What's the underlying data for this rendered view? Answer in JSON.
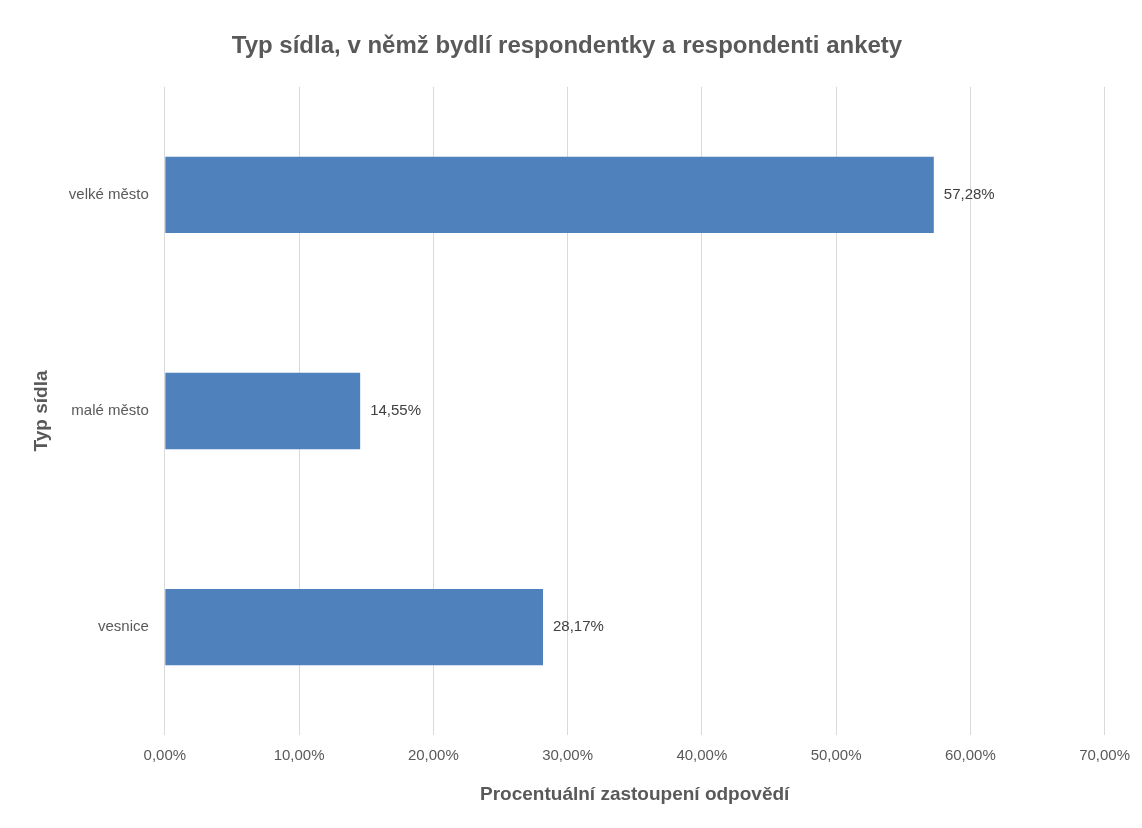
{
  "chart_data": {
    "type": "bar",
    "orientation": "horizontal",
    "title": "Typ sídla, v němž bydlí respondentky a respondenti ankety",
    "xlabel": "Procentuální zastoupení odpovědí",
    "ylabel": "Typ sídla",
    "categories": [
      "velké město",
      "malé město",
      "vesnice"
    ],
    "values": [
      57.28,
      14.55,
      28.17
    ],
    "color": "#4f81bd",
    "value_labels": [
      "57,28%",
      "14,55%",
      "28,17%"
    ],
    "xlim": [
      0,
      70
    ],
    "xticks": [
      {
        "value": 0,
        "label": "0,00%"
      },
      {
        "value": 10,
        "label": "10,00%"
      },
      {
        "value": 20,
        "label": "20,00%"
      },
      {
        "value": 30,
        "label": "30,00%"
      },
      {
        "value": 40,
        "label": "40,00%"
      },
      {
        "value": 50,
        "label": "50,00%"
      },
      {
        "value": 60,
        "label": "60,00%"
      },
      {
        "value": 70,
        "label": "70,00%"
      }
    ],
    "grid": "x"
  }
}
